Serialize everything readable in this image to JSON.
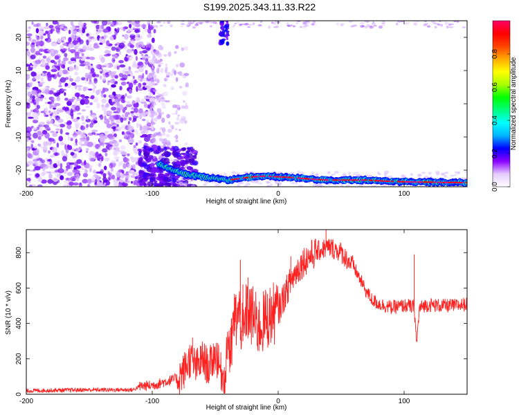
{
  "title": "S199.2025.343.11.33.R22",
  "chart_data": [
    {
      "type": "heatmap",
      "xlabel": "Height of straight line (km)",
      "ylabel": "Frequency (Hz)",
      "xlim": [
        -200,
        150
      ],
      "ylim": [
        -25,
        25
      ],
      "xticks": [
        "-200",
        "-100",
        "0",
        "100"
      ],
      "yticks": [
        "-20",
        "-10",
        "0",
        "10",
        "20"
      ],
      "colorbar": {
        "label": "Normalized spectral amplitude",
        "range": [
          0,
          1
        ],
        "ticks": [
          "0.0",
          "0.2",
          "0.4",
          "0.6",
          "0.8"
        ],
        "colors": [
          "#ffffff",
          "#e6ccff",
          "#8b00ff",
          "#0000ff",
          "#00b4ff",
          "#00ffff",
          "#00ff7f",
          "#00ff00",
          "#aaff00",
          "#ffff00",
          "#ffaa00",
          "#ff4400",
          "#ff0000",
          "#ff0066"
        ]
      },
      "line_track": {
        "x": [
          -100,
          -90,
          -80,
          -70,
          -60,
          -50,
          -40,
          -30,
          -20,
          -10,
          0,
          10,
          20,
          30,
          40,
          50,
          60,
          70,
          80,
          90,
          100,
          110,
          120,
          130,
          140,
          150
        ],
        "y": [
          -17,
          -19,
          -20.5,
          -21.5,
          -22,
          -22.5,
          -23,
          -22.5,
          -22,
          -21.8,
          -22,
          -22.2,
          -22.5,
          -22.8,
          -23,
          -23,
          -23,
          -23,
          -23.2,
          -23.4,
          -23.5,
          -23.6,
          -23.6,
          -23.7,
          -23.7,
          -23.8
        ]
      }
    },
    {
      "type": "line",
      "xlabel": "Height of straight line (km)",
      "ylabel": "SNR (10 * v/v)",
      "xlim": [
        -200,
        150
      ],
      "ylim": [
        0,
        930
      ],
      "xticks": [
        "-200",
        "-100",
        "0",
        "100"
      ],
      "yticks": [
        "0",
        "200",
        "400",
        "600",
        "800"
      ],
      "color": "#ff2020",
      "x": [
        -200,
        -150,
        -115,
        -110,
        -100,
        -90,
        -80,
        -75,
        -70,
        -65,
        -60,
        -55,
        -50,
        -45,
        -42,
        -40,
        -38,
        -35,
        -30,
        -28,
        -25,
        -20,
        -15,
        -10,
        -5,
        0,
        5,
        10,
        15,
        20,
        25,
        30,
        35,
        40,
        45,
        50,
        55,
        60,
        65,
        70,
        75,
        80,
        85,
        90,
        95,
        100,
        104,
        106,
        108,
        110,
        112,
        115,
        120,
        130,
        140,
        150
      ],
      "y": [
        20,
        25,
        25,
        45,
        50,
        70,
        90,
        130,
        200,
        150,
        200,
        150,
        230,
        120,
        80,
        350,
        200,
        420,
        450,
        300,
        480,
        420,
        380,
        420,
        450,
        470,
        560,
        640,
        700,
        750,
        780,
        800,
        820,
        830,
        820,
        800,
        760,
        720,
        650,
        580,
        530,
        510,
        500,
        490,
        495,
        500,
        500,
        490,
        500,
        280,
        480,
        500,
        505,
        500,
        500,
        510
      ],
      "spikes": [
        {
          "x": -68,
          "y": 320
        },
        {
          "x": -48,
          "y": 290
        },
        {
          "x": -39,
          "y": 360
        },
        {
          "x": -30,
          "y": 760
        },
        {
          "x": -28,
          "y": 620
        },
        {
          "x": -24,
          "y": 660
        },
        {
          "x": -20,
          "y": 610
        },
        {
          "x": -10,
          "y": 590
        },
        {
          "x": 10,
          "y": 780
        },
        {
          "x": 38,
          "y": 930
        },
        {
          "x": 108,
          "y": 790
        }
      ]
    }
  ]
}
